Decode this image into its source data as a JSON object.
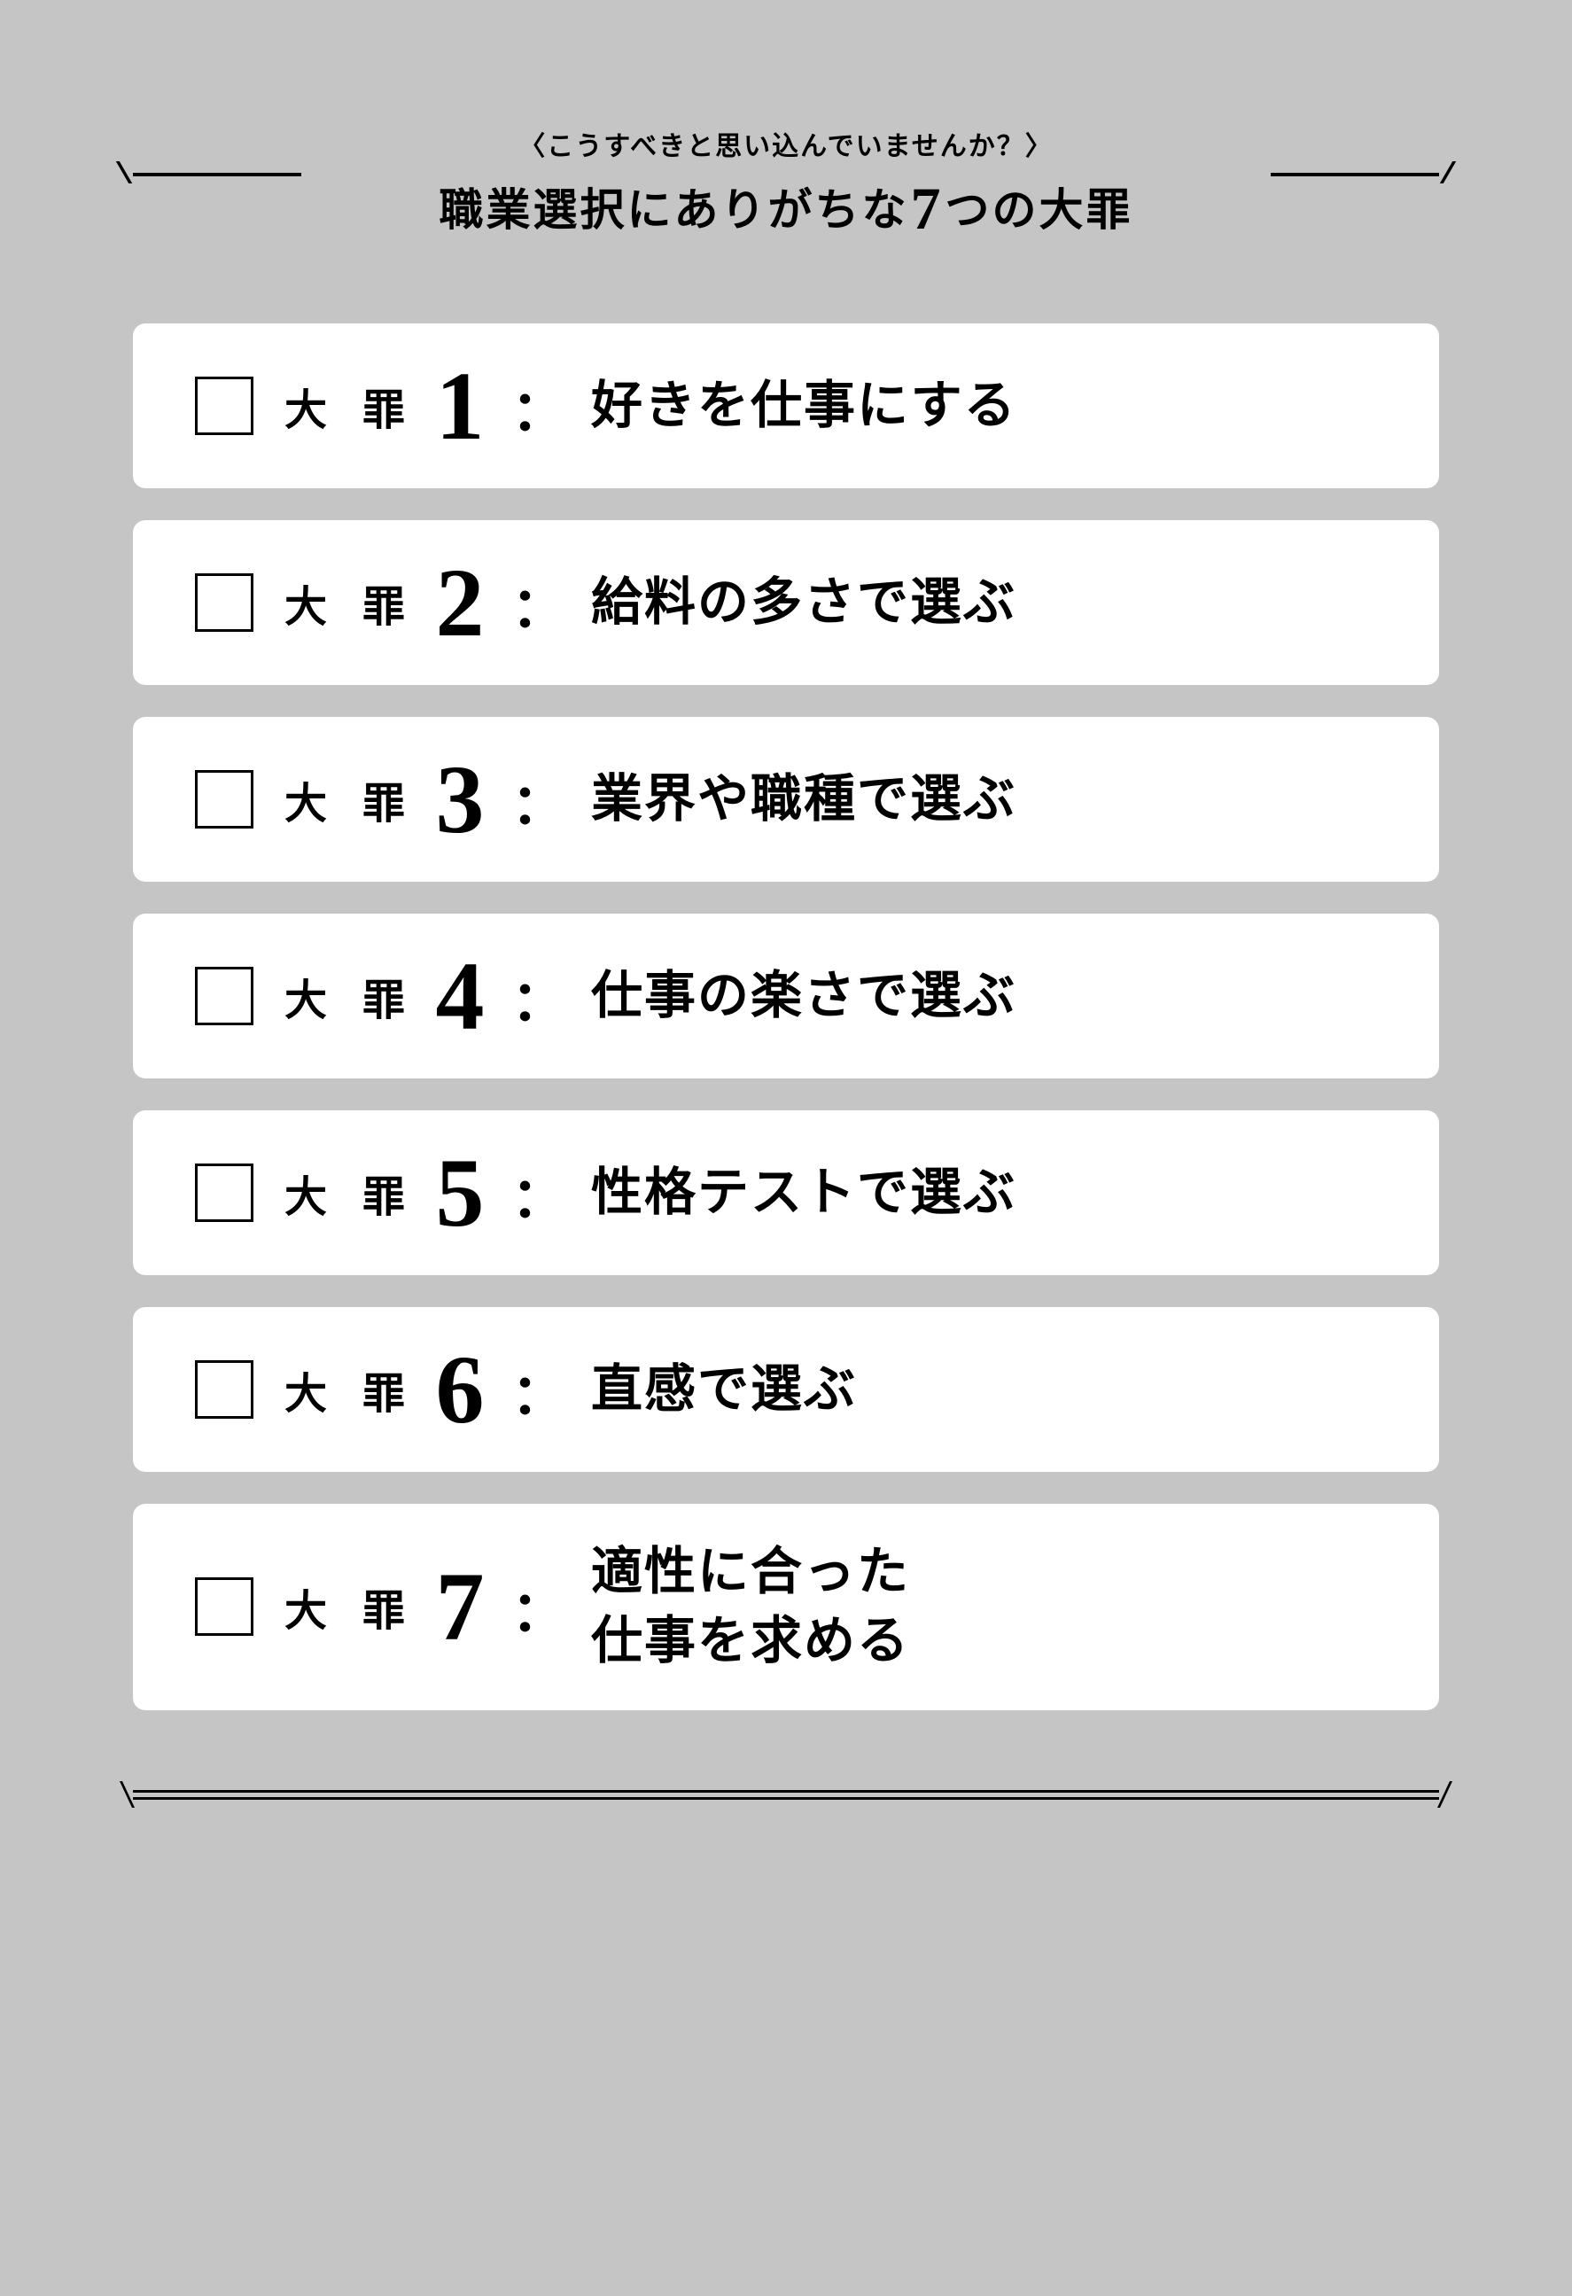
{
  "colors": {
    "background": "#c5c5c5",
    "card_background": "#ffffff",
    "text": "#000000",
    "rule": "#000000"
  },
  "header": {
    "subtitle": "〈こうすべきと思い込んでいませんか？〉",
    "title_prefix": "職業選択にありがちな",
    "title_number": "7",
    "title_suffix": "つの大罪"
  },
  "sin_label": "大 罪",
  "colon": "：",
  "sins": [
    {
      "number": "1",
      "text": "好きを仕事にする"
    },
    {
      "number": "2",
      "text": "給料の多さで選ぶ"
    },
    {
      "number": "3",
      "text": "業界や職種で選ぶ"
    },
    {
      "number": "4",
      "text": "仕事の楽さで選ぶ"
    },
    {
      "number": "5",
      "text": "性格テストで選ぶ"
    },
    {
      "number": "6",
      "text": "直感で選ぶ"
    },
    {
      "number": "7",
      "text": "適性に合った<br>仕事を求める"
    }
  ],
  "typography": {
    "subtitle_fontsize": 30,
    "title_fontsize": 50,
    "big_seven_fontsize": 68,
    "sin_label_fontsize": 48,
    "sin_number_fontsize": 110,
    "sin_text_fontsize": 58,
    "font_family_serif": "Hiragino Mincho ProN",
    "font_family_number": "Bodoni MT"
  },
  "layout": {
    "card_border_radius": 14,
    "card_gap": 36,
    "checkbox_size": 66,
    "checkbox_border": 3
  }
}
